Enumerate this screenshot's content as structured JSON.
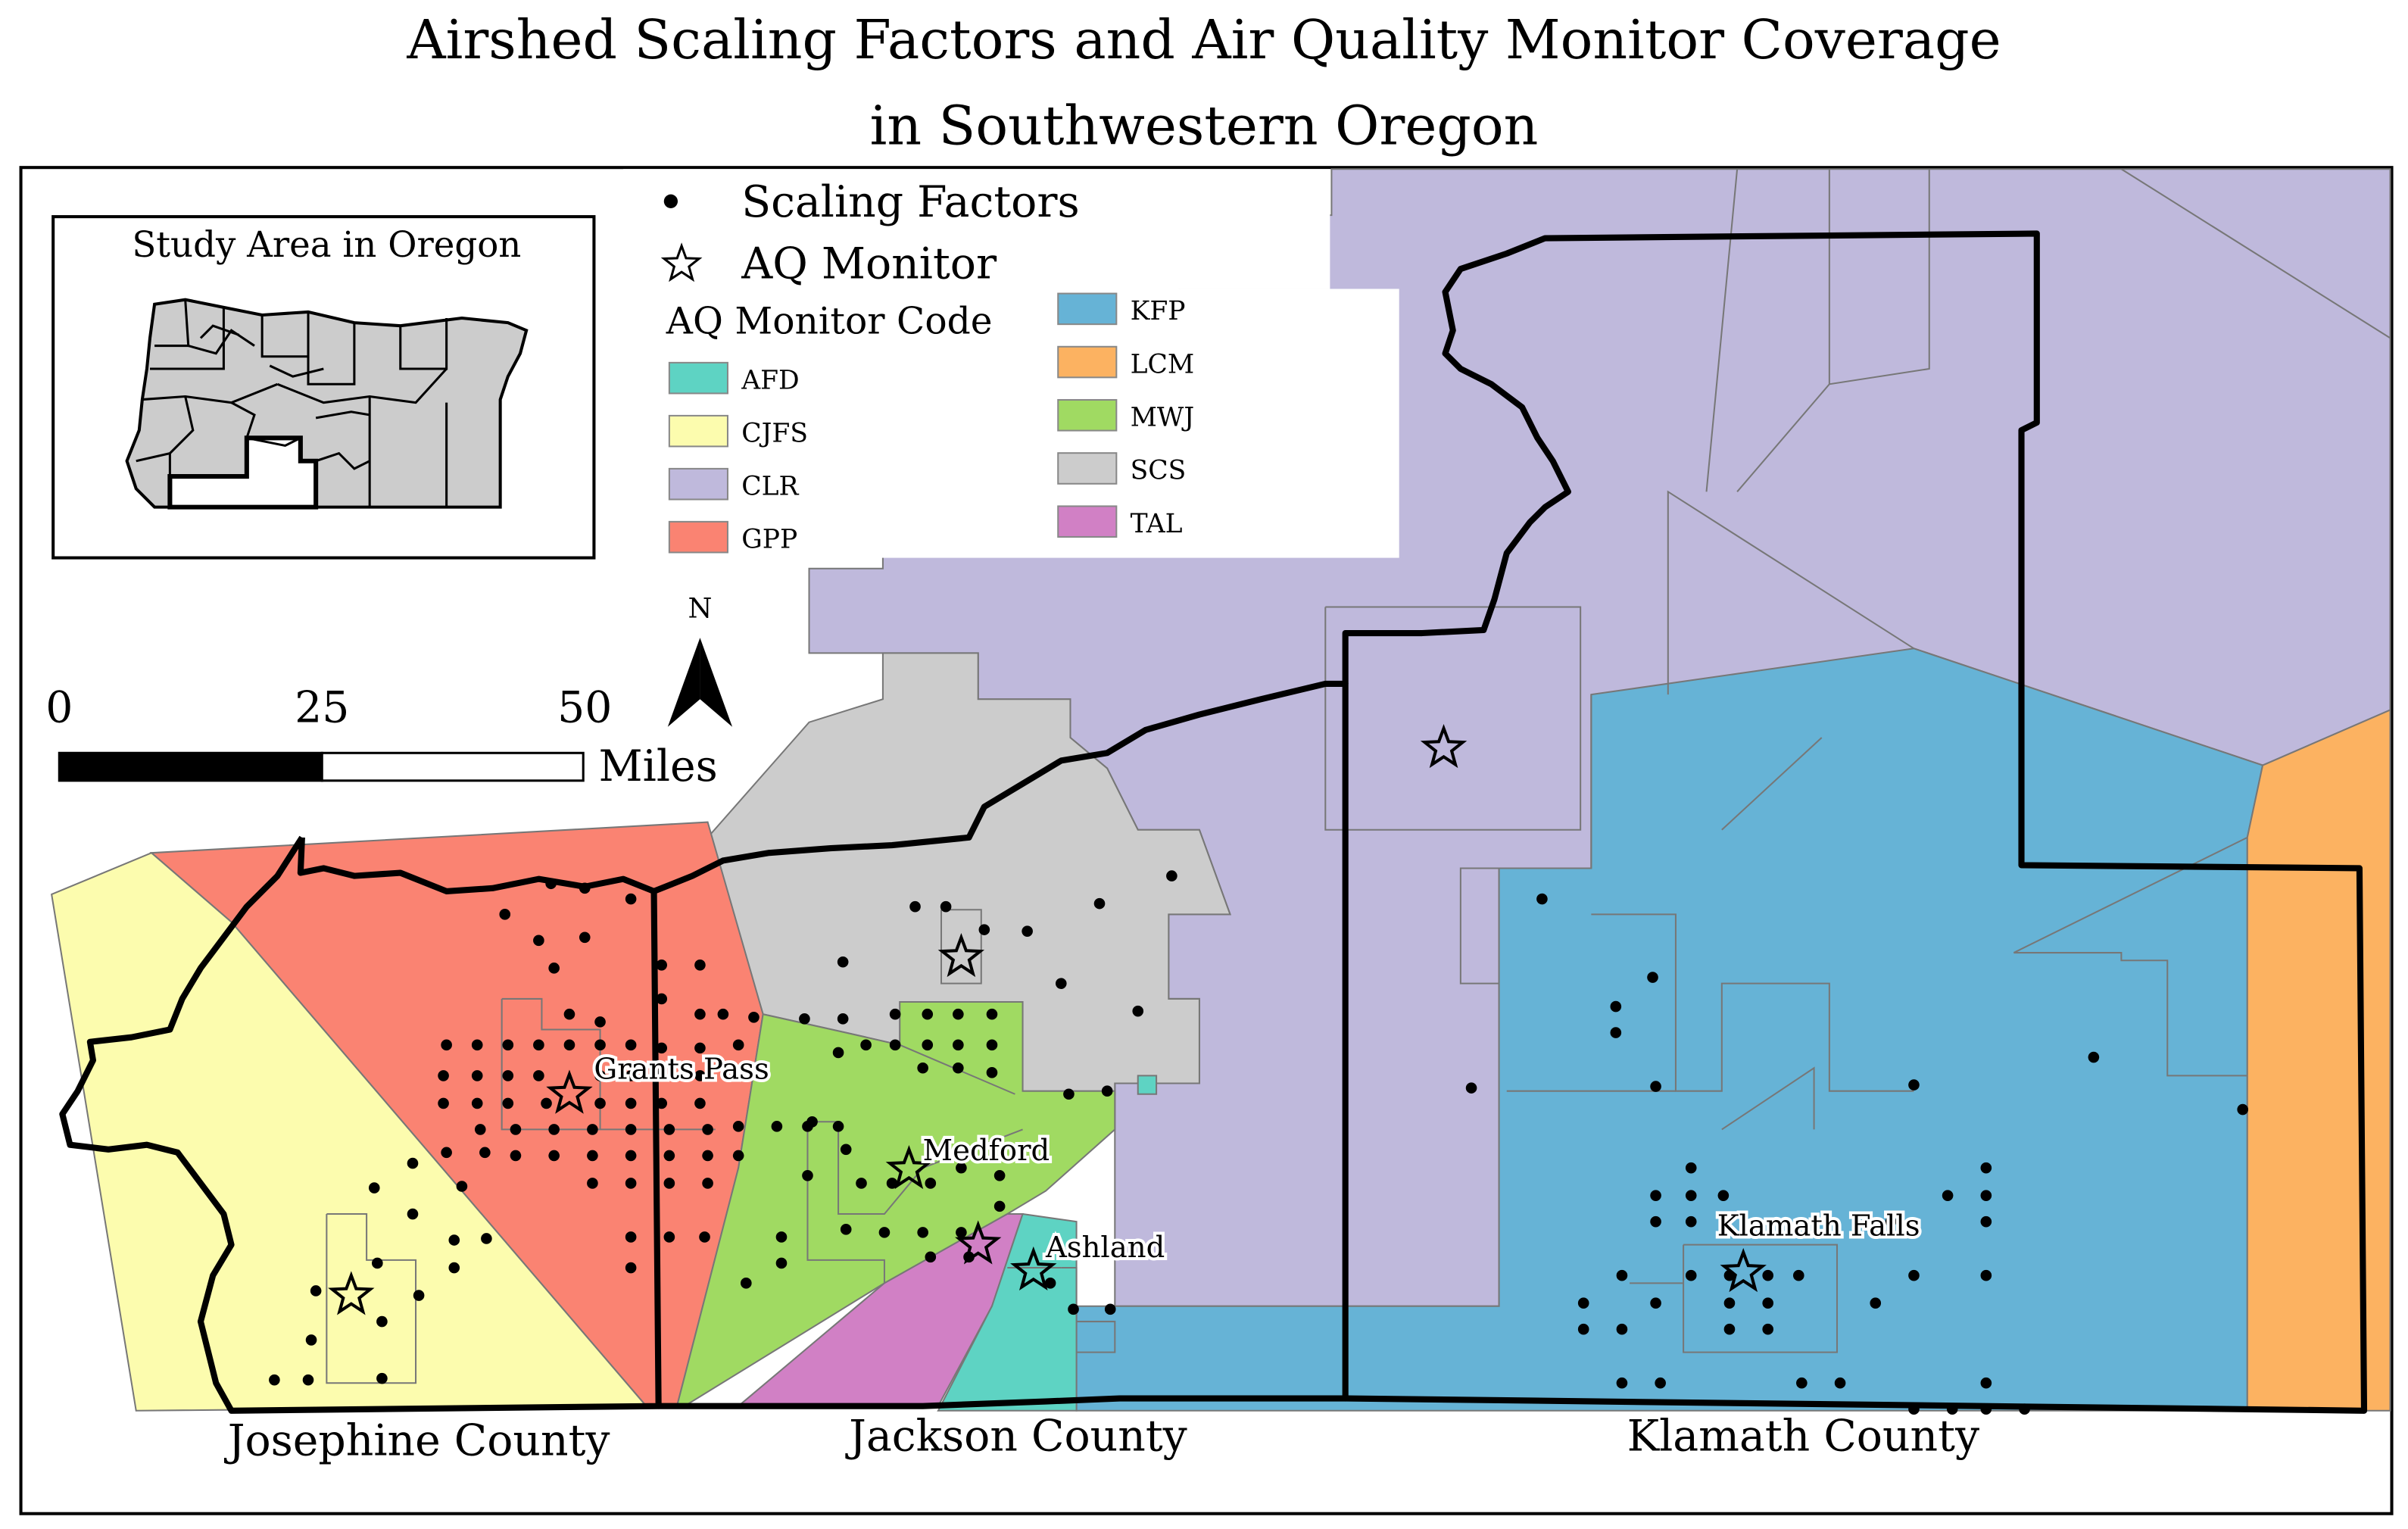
{
  "title": {
    "line1": "Airshed Scaling Factors and Air Quality Monitor Coverage",
    "line2": "in Southwestern Oregon"
  },
  "inset": {
    "title": "Study Area in Oregon"
  },
  "legend": {
    "scaling_factors": "Scaling Factors",
    "aq_monitor": "AQ Monitor",
    "code_heading": "AQ Monitor Code",
    "codes": [
      {
        "code": "AFD",
        "color": "#5ED3C3"
      },
      {
        "code": "CJFS",
        "color": "#FCFCAE"
      },
      {
        "code": "CLR",
        "color": "#BFB9DC"
      },
      {
        "code": "GPP",
        "color": "#FA8372"
      },
      {
        "code": "KFP",
        "color": "#66B3D6"
      },
      {
        "code": "LCM",
        "color": "#FCB261"
      },
      {
        "code": "MWJ",
        "color": "#A0DA62"
      },
      {
        "code": "SCS",
        "color": "#CCCCCC"
      },
      {
        "code": "TAL",
        "color": "#D180C5"
      }
    ]
  },
  "north_arrow": {
    "label": "N"
  },
  "scale_bar": {
    "ticks": [
      "0",
      "25",
      "50"
    ],
    "unit": "Miles"
  },
  "places": {
    "grants_pass": "Grants Pass",
    "medford": "Medford",
    "ashland": "Ashland",
    "klamath_falls": "Klamath Falls"
  },
  "counties": {
    "josephine": "Josephine County",
    "jackson": "Jackson County",
    "klamath": "Klamath County"
  }
}
